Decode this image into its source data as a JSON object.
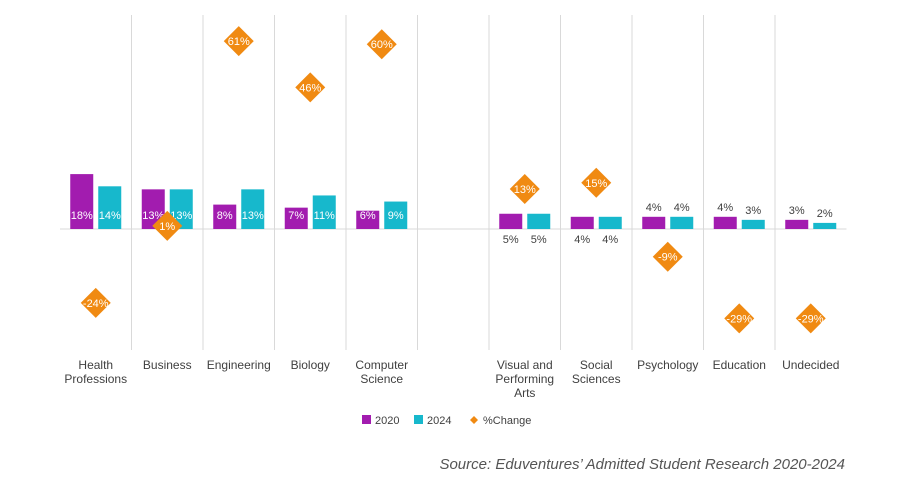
{
  "chart_data": {
    "type": "bar",
    "categories": [
      "Health Professions",
      "Business",
      "Engineering",
      "Biology",
      "Computer Science",
      "",
      "Visual and Performing Arts",
      "Social Sciences",
      "Psychology",
      "Education",
      "Undecided"
    ],
    "category_lines": [
      [
        "Health",
        "Professions"
      ],
      [
        "Business"
      ],
      [
        "Engineering"
      ],
      [
        "Biology"
      ],
      [
        "Computer",
        "Science"
      ],
      [],
      [
        "Visual and",
        "Performing",
        "Arts"
      ],
      [
        "Social",
        "Sciences"
      ],
      [
        "Psychology"
      ],
      [
        "Education"
      ],
      [
        "Undecided"
      ]
    ],
    "series": [
      {
        "name": "2020",
        "color": "#a21caf",
        "values": [
          18,
          13,
          8,
          7,
          6,
          null,
          5,
          4,
          4,
          4,
          3
        ],
        "labels": [
          "18%",
          "13%",
          "8%",
          "7%",
          "6%",
          "",
          "5%",
          "4%",
          "4%",
          "4%",
          "3%"
        ]
      },
      {
        "name": "2024",
        "color": "#17b8cc",
        "values": [
          14,
          13,
          13,
          11,
          9,
          null,
          5,
          4,
          4,
          3,
          2
        ],
        "labels": [
          "14%",
          "13%",
          "13%",
          "11%",
          "9%",
          "",
          "5%",
          "4%",
          "4%",
          "3%",
          "2%"
        ]
      },
      {
        "name": "%Change",
        "color": "#f08a12",
        "marker": "diamond",
        "values": [
          -24,
          1,
          61,
          46,
          60,
          null,
          13,
          15,
          -9,
          -29,
          -29
        ],
        "labels": [
          "-24%",
          "1%",
          "61%",
          "46%",
          "60%",
          "",
          "13%",
          "15%",
          "-9%",
          "-29%",
          "-29%"
        ]
      }
    ],
    "legend": [
      "2020",
      "2024",
      "%Change"
    ],
    "legend_position": "bottom",
    "grid": "vertical-separators",
    "source": "Source: Eduventures’ Admitted Student Research 2020-2024"
  }
}
